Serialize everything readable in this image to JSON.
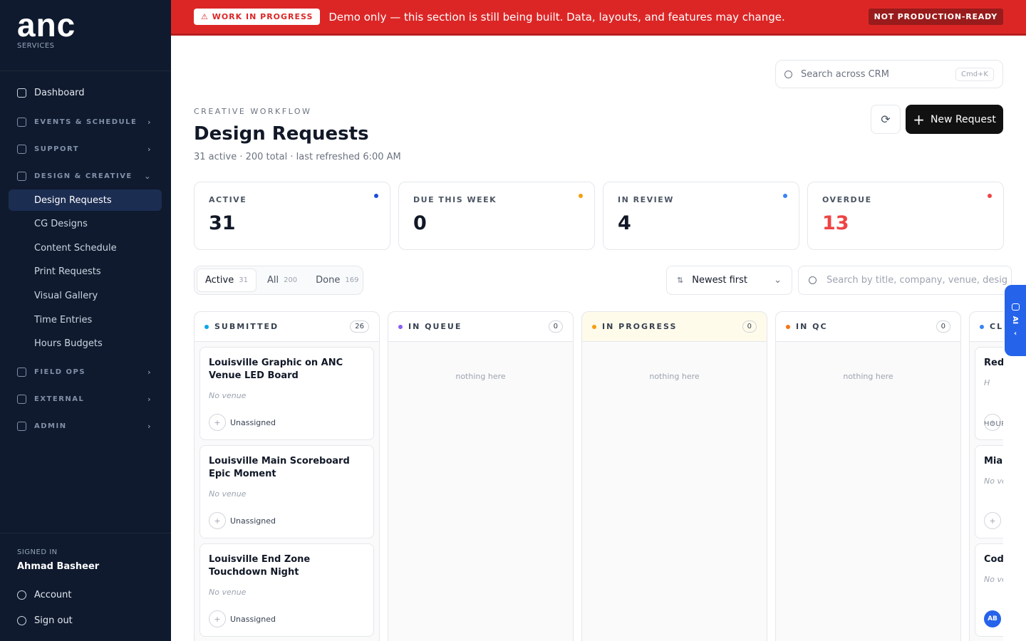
{
  "sidebar": {
    "logo": "anc",
    "logo_subtitle": "SERVICES",
    "dashboard": "Dashboard",
    "sections": [
      {
        "label": "EVENTS & SCHEDULE"
      },
      {
        "label": "SUPPORT"
      },
      {
        "label": "DESIGN & CREATIVE",
        "items": [
          "Design Requests",
          "CG Designs",
          "Content Schedule",
          "Print Requests",
          "Visual Gallery",
          "Time Entries",
          "Hours Budgets"
        ]
      },
      {
        "label": "FIELD OPS"
      },
      {
        "label": "EXTERNAL"
      },
      {
        "label": "ADMIN"
      }
    ],
    "signed_in_label": "SIGNED IN",
    "user_name": "Ahmad Basheer",
    "links": [
      "Account",
      "Sign out"
    ]
  },
  "banner": {
    "badge": "⚠ WORK IN PROGRESS",
    "message": "Demo only — this section is still being built. Data, layouts, and features may change.",
    "tag": "NOT PRODUCTION-READY"
  },
  "header": {
    "search_placeholder": "Search across CRM",
    "shortcut": "Cmd+K",
    "eyebrow": "CREATIVE WORKFLOW",
    "title": "Design Requests",
    "subtitle": "31 active · 200 total · last refreshed 6:00 AM",
    "new_button": "New Request"
  },
  "stats": [
    {
      "label": "ACTIVE",
      "value": 31,
      "color": "#1d4ed8"
    },
    {
      "label": "DUE THIS WEEK",
      "value": 0,
      "color": "#f59e0b"
    },
    {
      "label": "IN REVIEW",
      "value": 4,
      "color": "#3b82f6"
    },
    {
      "label": "OVERDUE",
      "value": 13,
      "color": "#ef4444",
      "highlight": true
    }
  ],
  "filters": {
    "tabs": [
      {
        "label": "Active",
        "count": 31
      },
      {
        "label": "All",
        "count": 200
      },
      {
        "label": "Done",
        "count": 169
      }
    ],
    "sort": "Newest first",
    "search_placeholder": "Search by title, company, venue, desig"
  },
  "columns": [
    {
      "name": "SUBMITTED",
      "count": 26,
      "color": "#0ea5e9",
      "cards": [
        {
          "title": "Louisville Graphic on ANC Venue LED Board",
          "venue": "No venue",
          "assignee": "Unassigned"
        },
        {
          "title": "Louisville Main Scoreboard Epic Moment",
          "venue": "No venue",
          "assignee": "Unassigned"
        },
        {
          "title": "Louisville End Zone Touchdown Night",
          "venue": "No venue",
          "assignee": "Unassigned"
        }
      ]
    },
    {
      "name": "IN QUEUE",
      "count": 0,
      "color": "#8b5cf6",
      "empty": "nothing here"
    },
    {
      "name": "IN PROGRESS",
      "count": 0,
      "color": "#f59e0b",
      "tint": "#fffbeb",
      "empty": "nothing here"
    },
    {
      "name": "IN QC",
      "count": 0,
      "color": "#f97316",
      "empty": "nothing here"
    },
    {
      "name": "CLI",
      "color": "#3b82f6",
      "cards": [
        {
          "title": "Red cent",
          "venue": "H",
          "extra": "HOUR"
        },
        {
          "title": "Miam mocl",
          "venue": "No ve"
        },
        {
          "title": "Code",
          "venue": "No ve",
          "avatar": "AB"
        }
      ]
    }
  ],
  "ai_tab": "AI"
}
